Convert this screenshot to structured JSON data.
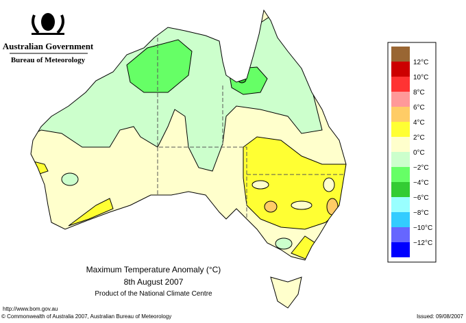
{
  "header": {
    "government": "Australian Government",
    "agency": "Bureau of Meteorology"
  },
  "map": {
    "title": "Maximum Temperature Anomaly (°C)",
    "date": "8th August 2007",
    "product": "Product of the National Climate Centre"
  },
  "legend": {
    "colors": [
      "#996633",
      "#cc0000",
      "#ff3333",
      "#ff9999",
      "#ffcc66",
      "#ffff33",
      "#ffffcc",
      "#ccffcc",
      "#66ff66",
      "#33cc33",
      "#99ffff",
      "#33ccff",
      "#6666ff",
      "#0000ff"
    ],
    "labels": [
      "12°C",
      "10°C",
      "8°C",
      "6°C",
      "4°C",
      "2°C",
      "0°C",
      "−2°C",
      "−4°C",
      "−6°C",
      "−8°C",
      "−10°C",
      "−12°C"
    ]
  },
  "footer": {
    "url": "http://www.bom.gov.au",
    "copyright": "© Commonwealth of Australia 2007, Australian Bureau of Meteorology",
    "issued": "Issued: 09/08/2007"
  }
}
